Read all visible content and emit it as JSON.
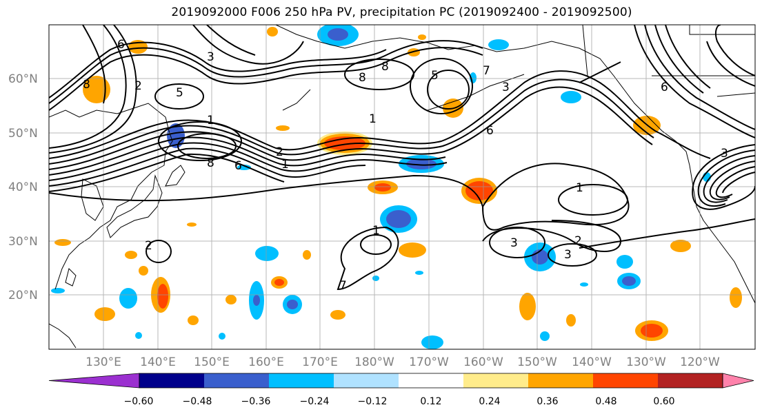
{
  "title": "2019092000 F006 250 hPa PV, precipitation PC (2019092400 - 2019092500)",
  "lat_labels": [
    "60°N",
    "50°N",
    "40°N",
    "30°N",
    "20°N"
  ],
  "lon_labels": [
    "130°E",
    "140°E",
    "150°E",
    "160°E",
    "170°E",
    "180°W",
    "170°W",
    "160°W",
    "150°W",
    "140°W",
    "130°W",
    "120°W"
  ],
  "map": {
    "lon_range": [
      120,
      250
    ],
    "lat_range": [
      10,
      70
    ],
    "gridlines": true
  },
  "colorbar": {
    "ticks": [
      "−0.60",
      "−0.48",
      "−0.36",
      "−0.24",
      "−0.12",
      "0.12",
      "0.24",
      "0.36",
      "0.48",
      "0.60"
    ],
    "colors": [
      "#9b30d0",
      "#00008b",
      "#3a5fcd",
      "#00bfff",
      "#b0e2ff",
      "#ffffff",
      "#ffec8b",
      "#ffa500",
      "#ff4500",
      "#b22222",
      "#ff82ab"
    ],
    "extend": "both"
  },
  "pv_contour_labels": [
    "6",
    "3",
    "8",
    "5",
    "2",
    "8",
    "5",
    "7",
    "8",
    "6",
    "1",
    "1",
    "1",
    "2",
    "8",
    "6",
    "3",
    "7",
    "1",
    "2",
    "1",
    "3",
    "3",
    "2",
    "6",
    "3"
  ]
}
